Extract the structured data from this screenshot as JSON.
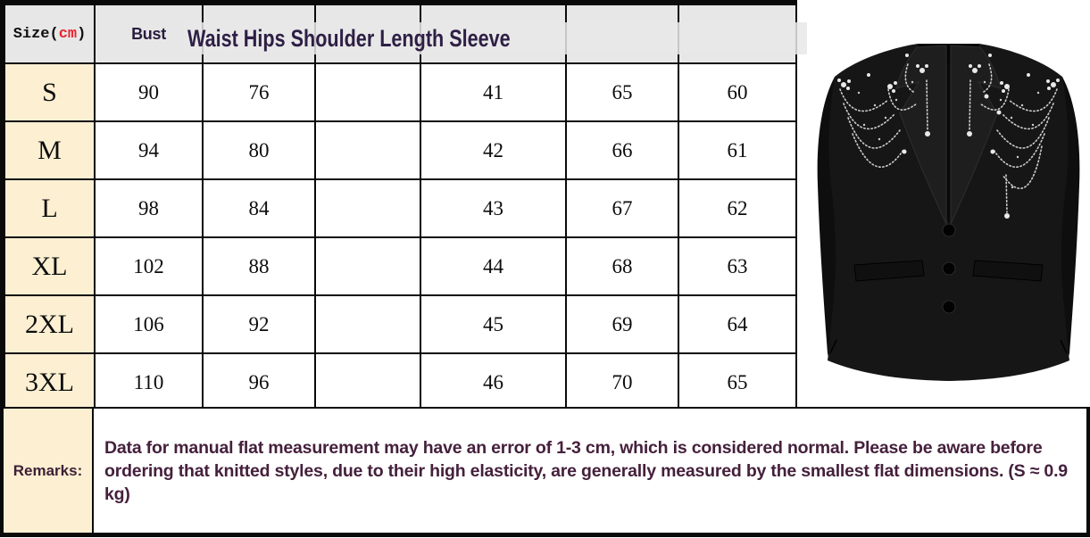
{
  "colors": {
    "header_bg": "#E7E7E7",
    "size_column_bg": "#FCEFD2",
    "unit_red": "#E8242C",
    "header_text": "#2E1F45",
    "remarks_text": "#45203C",
    "border": "#0A0A0A"
  },
  "size_chart": {
    "unit_header": {
      "prefix": "Size(",
      "unit": "cm",
      "suffix": ")"
    },
    "bust_label": "Bust",
    "overflow_header": "Waist Hips Shoulder Length Sleeve",
    "columns": [
      "Size(cm)",
      "Bust",
      "Waist",
      "Hips",
      "Shoulder",
      "Length",
      "Sleeve"
    ],
    "rows": [
      {
        "size": "S",
        "values": [
          "90",
          "76",
          "",
          "41",
          "65",
          "60"
        ]
      },
      {
        "size": "M",
        "values": [
          "94",
          "80",
          "",
          "42",
          "66",
          "61"
        ]
      },
      {
        "size": "L",
        "values": [
          "98",
          "84",
          "",
          "43",
          "67",
          "62"
        ]
      },
      {
        "size": "XL",
        "values": [
          "102",
          "88",
          "",
          "44",
          "68",
          "63"
        ]
      },
      {
        "size": "2XL",
        "values": [
          "106",
          "92",
          "",
          "45",
          "69",
          "64"
        ]
      },
      {
        "size": "3XL",
        "values": [
          "110",
          "96",
          "",
          "46",
          "70",
          "65"
        ]
      }
    ]
  },
  "remarks": {
    "label": "Remarks:",
    "text": "Data for manual flat measurement may have an error of 1-3 cm, which is considered normal. Please be aware before ordering that knitted styles, due to their high elasticity, are generally measured by the smallest flat dimensions. (S ≈ 0.9 kg)"
  },
  "product": {
    "description": "Black tailored blazer with silver crystal beaded shoulder embellishments, three buttons and flap pockets"
  }
}
